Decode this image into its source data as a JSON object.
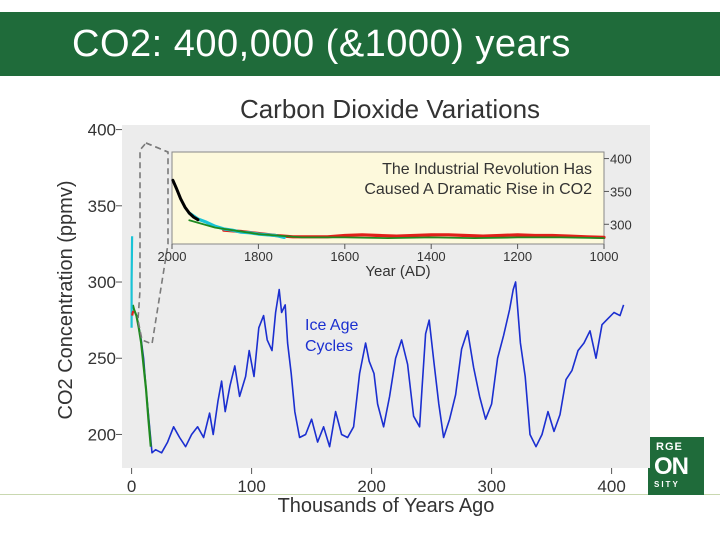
{
  "slide": {
    "title": "CO2: 400,000 (&1000) years"
  },
  "logo": {
    "line1": "RGE",
    "line2": "ON",
    "line3": "SITY"
  },
  "colors": {
    "banner": "#1f6b3a",
    "ice_age_line": "#1b2fd0",
    "industrial_line": "#000000",
    "cyan_series": "#19c3d6",
    "red_series": "#e0201a",
    "green_series": "#1f8a1f",
    "inset_bg": "#fdf9dc",
    "plot_bg": "#ececec"
  },
  "chart_data": [
    {
      "type": "line",
      "title": "Carbon Dioxide Variations",
      "xlabel": "Thousands of Years Ago",
      "ylabel": "CO2 Concentration (ppmv)",
      "xlim": [
        -8,
        432
      ],
      "ylim": [
        178,
        403
      ],
      "x_ticks": [
        "0",
        "100",
        "200",
        "300",
        "400"
      ],
      "y_ticks": [
        "200",
        "250",
        "300",
        "350",
        "400"
      ],
      "annotation": [
        "Ice Age",
        "Cycles"
      ],
      "series": [
        {
          "name": "",
          "color": "#1b2fd0",
          "points": [
            [
              5,
              275
            ],
            [
              8,
              262
            ],
            [
              10,
              250
            ],
            [
              12,
              230
            ],
            [
              15,
              205
            ],
            [
              17,
              188
            ],
            [
              20,
              190
            ],
            [
              25,
              188
            ],
            [
              30,
              195
            ],
            [
              35,
              205
            ],
            [
              40,
              198
            ],
            [
              45,
              192
            ],
            [
              50,
              200
            ],
            [
              55,
              205
            ],
            [
              60,
              198
            ],
            [
              65,
              214
            ],
            [
              68,
              200
            ],
            [
              72,
              222
            ],
            [
              75,
              235
            ],
            [
              78,
              215
            ],
            [
              82,
              232
            ],
            [
              86,
              245
            ],
            [
              90,
              225
            ],
            [
              95,
              238
            ],
            [
              98,
              255
            ],
            [
              102,
              238
            ],
            [
              106,
              270
            ],
            [
              110,
              278
            ],
            [
              113,
              262
            ],
            [
              117,
              255
            ],
            [
              120,
              280
            ],
            [
              123,
              295
            ],
            [
              125,
              280
            ],
            [
              128,
              285
            ],
            [
              130,
              260
            ],
            [
              133,
              240
            ],
            [
              136,
              215
            ],
            [
              140,
              198
            ],
            [
              145,
              200
            ],
            [
              150,
              210
            ],
            [
              155,
              195
            ],
            [
              160,
              205
            ],
            [
              165,
              192
            ],
            [
              170,
              215
            ],
            [
              175,
              200
            ],
            [
              180,
              198
            ],
            [
              185,
              205
            ],
            [
              190,
              240
            ],
            [
              195,
              260
            ],
            [
              198,
              248
            ],
            [
              202,
              240
            ],
            [
              205,
              220
            ],
            [
              210,
              205
            ],
            [
              215,
              225
            ],
            [
              220,
              250
            ],
            [
              225,
              262
            ],
            [
              230,
              246
            ],
            [
              235,
              212
            ],
            [
              240,
              205
            ],
            [
              242,
              230
            ],
            [
              245,
              266
            ],
            [
              248,
              275
            ],
            [
              252,
              247
            ],
            [
              256,
              220
            ],
            [
              260,
              198
            ],
            [
              265,
              210
            ],
            [
              270,
              226
            ],
            [
              275,
              256
            ],
            [
              280,
              268
            ],
            [
              285,
              244
            ],
            [
              290,
              225
            ],
            [
              295,
              210
            ],
            [
              300,
              220
            ],
            [
              305,
              250
            ],
            [
              310,
              265
            ],
            [
              315,
              282
            ],
            [
              318,
              295
            ],
            [
              320,
              300
            ],
            [
              324,
              260
            ],
            [
              328,
              238
            ],
            [
              332,
              200
            ],
            [
              337,
              192
            ],
            [
              342,
              200
            ],
            [
              347,
              215
            ],
            [
              352,
              202
            ],
            [
              357,
              213
            ],
            [
              362,
              236
            ],
            [
              367,
              242
            ],
            [
              372,
              255
            ],
            [
              377,
              260
            ],
            [
              382,
              268
            ],
            [
              387,
              250
            ],
            [
              392,
              272
            ],
            [
              397,
              276
            ],
            [
              402,
              280
            ],
            [
              407,
              278
            ],
            [
              410,
              285
            ]
          ]
        },
        {
          "name": "",
          "color": "#1f8a1f",
          "points": [
            [
              1,
              285
            ],
            [
              2,
              282
            ],
            [
              4,
              278
            ],
            [
              6,
              270
            ],
            [
              8,
              260
            ],
            [
              10,
              245
            ],
            [
              12,
              230
            ],
            [
              14,
              210
            ],
            [
              16,
              192
            ]
          ]
        },
        {
          "name": "",
          "color": "#19c3d6",
          "points": [
            [
              0,
              270
            ],
            [
              0,
              300
            ],
            [
              0.4,
              330
            ]
          ]
        },
        {
          "name": "",
          "color": "#e0201a",
          "points": [
            [
              0.5,
              278
            ],
            [
              1,
              280
            ],
            [
              1.6,
              281
            ]
          ]
        }
      ]
    },
    {
      "type": "line",
      "title": "",
      "xlabel": "Year (AD)",
      "ylabel": "",
      "xlim": [
        2000,
        1000
      ],
      "ylim": [
        270,
        410
      ],
      "x_ticks": [
        "2000",
        "1800",
        "1600",
        "1400",
        "1200",
        "1000"
      ],
      "y_ticks": [
        "400",
        "350",
        "300"
      ],
      "annotation": [
        "The Industrial Revolution Has",
        "Caused A Dramatic Rise in CO2"
      ],
      "series": [
        {
          "name": "",
          "color": "#000000",
          "points": [
            [
              1998,
              367
            ],
            [
              1990,
              355
            ],
            [
              1980,
              339
            ],
            [
              1970,
              326
            ],
            [
              1960,
              317
            ],
            [
              1950,
              311
            ],
            [
              1940,
              307
            ]
          ]
        },
        {
          "name": "",
          "color": "#19c3d6",
          "points": [
            [
              1960,
              317
            ],
            [
              1940,
              308
            ],
            [
              1920,
              303
            ],
            [
              1900,
              297
            ],
            [
              1880,
              293
            ],
            [
              1860,
              291
            ],
            [
              1840,
              288
            ],
            [
              1820,
              287
            ],
            [
              1800,
              285
            ],
            [
              1780,
              284
            ],
            [
              1760,
              283
            ],
            [
              1740,
              280
            ]
          ]
        },
        {
          "name": "",
          "color": "#e0201a",
          "points": [
            [
              1880,
              291
            ],
            [
              1840,
              289
            ],
            [
              1800,
              286
            ],
            [
              1760,
              283
            ],
            [
              1720,
              281
            ],
            [
              1680,
              281
            ],
            [
              1640,
              281
            ],
            [
              1600,
              283
            ],
            [
              1560,
              284
            ],
            [
              1520,
              283
            ],
            [
              1480,
              282
            ],
            [
              1440,
              283
            ],
            [
              1400,
              284
            ],
            [
              1360,
              284
            ],
            [
              1320,
              283
            ],
            [
              1280,
              282
            ],
            [
              1240,
              283
            ],
            [
              1200,
              284
            ],
            [
              1160,
              283
            ],
            [
              1120,
              283
            ],
            [
              1080,
              282
            ],
            [
              1040,
              281
            ],
            [
              1000,
              280
            ]
          ]
        },
        {
          "name": "",
          "color": "#1f8a1f",
          "points": [
            [
              1960,
              306
            ],
            [
              1900,
              295
            ],
            [
              1800,
              285
            ],
            [
              1700,
              280
            ],
            [
              1600,
              280
            ],
            [
              1500,
              279
            ],
            [
              1400,
              280
            ],
            [
              1300,
              279
            ],
            [
              1200,
              280
            ],
            [
              1100,
              280
            ],
            [
              1000,
              279
            ]
          ]
        }
      ]
    }
  ]
}
